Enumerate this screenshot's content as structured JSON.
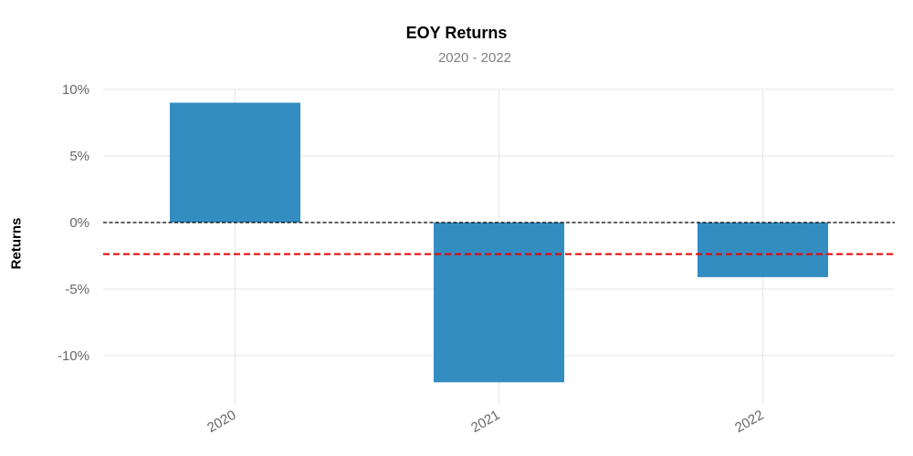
{
  "chart_data": {
    "type": "bar",
    "title": "EOY Returns",
    "subtitle": "2020 - 2022",
    "xlabel": "",
    "ylabel": "Returns",
    "categories": [
      "2020",
      "2021",
      "2022"
    ],
    "values": [
      9.0,
      -12.0,
      -4.1
    ],
    "yticks": [
      10,
      5,
      0,
      -5,
      -10
    ],
    "ytick_labels": [
      "10%",
      "5%",
      "0%",
      "-5%",
      "-10%"
    ],
    "ylim": [
      -13,
      10
    ],
    "reference_lines": {
      "zero": 0,
      "mean": -2.37
    },
    "grid": true,
    "colors": {
      "bar": "#348dc1",
      "mean_line": "#e80000",
      "zero_line": "#000000",
      "grid": "#e6e6e6"
    }
  }
}
